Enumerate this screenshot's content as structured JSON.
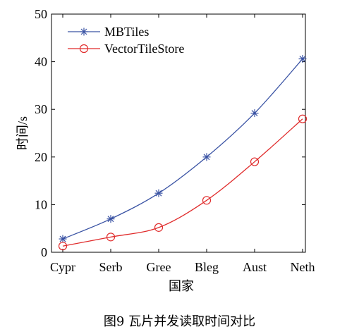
{
  "chart_data": {
    "type": "line",
    "categories": [
      "Cypr",
      "Serb",
      "Gree",
      "Bleg",
      "Aust",
      "Neth"
    ],
    "series": [
      {
        "name": "MBTiles",
        "color": "#3a53a4",
        "marker": "asterisk",
        "values": [
          2.8,
          7.0,
          12.4,
          20.0,
          29.2,
          40.6
        ]
      },
      {
        "name": "VectorTileStore",
        "color": "#e02b2b",
        "marker": "circle",
        "values": [
          1.3,
          3.2,
          5.2,
          10.9,
          19.0,
          28.0
        ]
      }
    ],
    "xlabel": "国家",
    "ylabel": "时间/s",
    "ylim": [
      0,
      50
    ],
    "yticks": [
      0,
      10,
      20,
      30,
      40,
      50
    ],
    "grid": false,
    "legend_position": "top-left"
  },
  "caption": "图9   瓦片并发读取时间对比"
}
